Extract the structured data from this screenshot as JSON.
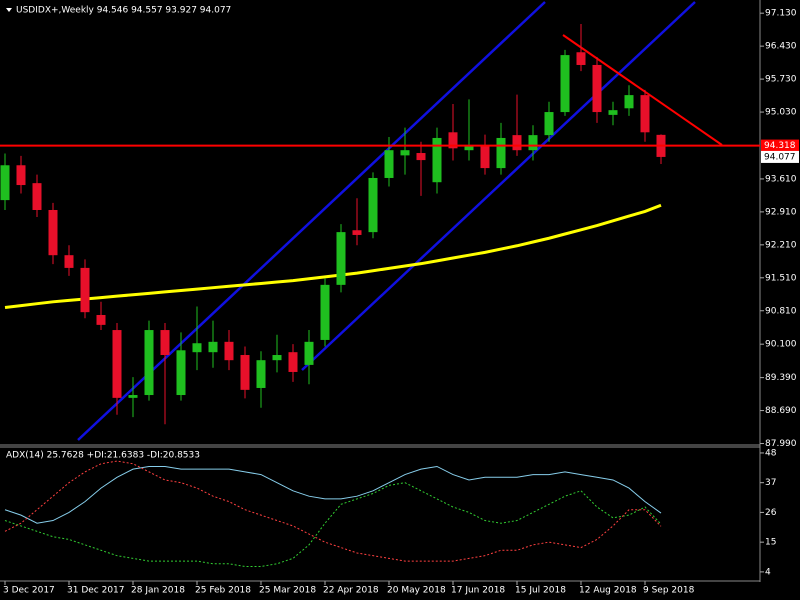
{
  "chart_data": [
    {
      "type": "candlestick",
      "title": "USDIDX+,Weekly  94.546 94.557 93.927 94.077",
      "categories": [
        "3 Dec 2017",
        null,
        null,
        null,
        "31 Dec 2017",
        null,
        null,
        null,
        "28 Jan 2018",
        null,
        null,
        null,
        "25 Feb 2018",
        null,
        null,
        null,
        "25 Mar 2018",
        null,
        null,
        null,
        "22 Apr 2018",
        null,
        null,
        null,
        "20 May 2018",
        null,
        null,
        null,
        "17 Jun 2018",
        null,
        null,
        null,
        "15 Jul 2018",
        null,
        null,
        null,
        "12 Aug 2018",
        null,
        null,
        null,
        "9 Sep 2018",
        null
      ],
      "open": [
        93.16,
        93.9,
        93.52,
        92.95,
        91.99,
        91.72,
        90.72,
        90.4,
        88.96,
        89.02,
        90.4,
        89.02,
        89.93,
        89.93,
        90.15,
        89.87,
        89.17,
        89.76,
        89.93,
        89.66,
        90.19,
        91.36,
        92.52,
        92.48,
        93.63,
        94.11,
        94.16,
        93.54,
        94.6,
        94.22,
        94.33,
        93.84,
        94.54,
        94.22,
        94.54,
        95.03,
        96.3,
        96.03,
        94.97,
        95.11,
        95.39,
        94.546
      ],
      "high": [
        94.15,
        94.1,
        93.7,
        93.1,
        92.2,
        91.9,
        91.0,
        90.55,
        89.4,
        90.6,
        90.55,
        90.35,
        90.9,
        90.6,
        90.4,
        90.05,
        89.95,
        90.3,
        90.1,
        90.4,
        91.5,
        92.65,
        93.2,
        93.75,
        94.5,
        94.7,
        94.4,
        94.7,
        95.2,
        95.3,
        94.55,
        94.8,
        95.4,
        94.75,
        95.25,
        96.35,
        96.9,
        96.2,
        95.25,
        95.6,
        95.5,
        94.557
      ],
      "low": [
        92.95,
        93.3,
        92.8,
        91.8,
        91.55,
        90.65,
        90.4,
        88.6,
        88.55,
        88.9,
        88.4,
        88.9,
        89.55,
        89.6,
        89.55,
        88.95,
        88.75,
        89.5,
        89.3,
        89.25,
        90.05,
        91.2,
        92.2,
        92.35,
        93.45,
        93.7,
        93.25,
        93.3,
        94.0,
        94.0,
        93.7,
        93.7,
        94.1,
        94.0,
        94.4,
        94.95,
        95.9,
        94.8,
        94.75,
        94.95,
        94.4,
        93.927
      ],
      "close": [
        93.9,
        93.48,
        92.95,
        91.99,
        91.72,
        90.78,
        90.51,
        88.96,
        89.02,
        90.4,
        89.87,
        89.97,
        90.12,
        90.15,
        89.76,
        89.13,
        89.76,
        89.87,
        89.51,
        90.15,
        91.36,
        92.48,
        92.42,
        93.63,
        94.22,
        94.22,
        94.01,
        94.48,
        94.26,
        94.33,
        93.84,
        94.48,
        94.22,
        94.54,
        95.03,
        96.24,
        96.03,
        95.03,
        95.07,
        95.39,
        94.6,
        94.077
      ],
      "up_color": "#1fbf1f",
      "down_color": "#e8102a",
      "ma": {
        "color": "#ffff00",
        "values": [
          90.88,
          90.92,
          90.96,
          91.0,
          91.03,
          91.06,
          91.09,
          91.12,
          91.15,
          91.18,
          91.21,
          91.24,
          91.27,
          91.3,
          91.33,
          91.36,
          91.39,
          91.42,
          91.45,
          91.49,
          91.53,
          91.57,
          91.61,
          91.66,
          91.71,
          91.76,
          91.81,
          91.87,
          91.93,
          91.99,
          92.05,
          92.12,
          92.19,
          92.27,
          92.35,
          92.44,
          92.53,
          92.62,
          92.72,
          92.82,
          92.92,
          93.05
        ]
      },
      "level": 94.318,
      "level_color": "#ff0000",
      "ylim": [
        87.98,
        97.41
      ],
      "yticks": [
        {
          "value": 97.13,
          "label": "97.130"
        },
        {
          "value": 96.43,
          "label": "96.430"
        },
        {
          "value": 95.73,
          "label": "95.730"
        },
        {
          "value": 95.03,
          "label": "95.030"
        },
        {
          "value": 93.61,
          "label": "93.610"
        },
        {
          "value": 92.91,
          "label": "92.910"
        },
        {
          "value": 92.21,
          "label": "92.210"
        },
        {
          "value": 91.51,
          "label": "91.510"
        },
        {
          "value": 90.81,
          "label": "90.810"
        },
        {
          "value": 90.1,
          "label": "90.100"
        },
        {
          "value": 89.39,
          "label": "89.390"
        },
        {
          "value": 88.69,
          "label": "88.690"
        },
        {
          "value": 87.99,
          "label": "87.990"
        }
      ]
    },
    {
      "type": "line",
      "title": "ADX(14) 25.7628 +DI:21.6383 -DI:20.8533",
      "series": [
        {
          "name": "ADX",
          "color": "#87ceeb",
          "dash": false,
          "values": [
            27,
            25,
            22,
            23,
            26,
            30,
            35,
            39,
            42,
            43,
            43,
            42,
            42,
            42,
            42,
            41,
            40,
            37,
            34,
            32,
            31,
            31,
            32,
            34,
            37,
            40,
            42,
            43,
            40,
            38,
            39,
            39,
            39,
            40,
            40,
            41,
            40,
            39,
            38,
            35,
            30,
            25.7628
          ]
        },
        {
          "name": "+DI",
          "color": "#32cd32",
          "dash": true,
          "values": [
            23,
            21,
            19,
            17,
            16,
            14,
            12,
            10,
            9,
            8,
            8,
            8,
            8,
            7,
            7,
            6,
            6,
            7,
            9,
            14,
            22,
            29,
            31,
            33,
            36,
            37,
            34,
            31,
            28,
            26,
            23,
            22,
            23,
            26,
            29,
            32,
            34,
            28,
            24,
            25,
            28,
            21.6383
          ]
        },
        {
          "name": "-DI",
          "color": "#ff4040",
          "dash": true,
          "values": [
            19,
            22,
            27,
            32,
            37,
            41,
            44,
            45,
            44,
            41,
            38,
            37,
            35,
            32,
            30,
            27,
            25,
            23,
            21,
            18,
            15,
            13,
            11,
            10,
            9,
            8,
            8,
            8,
            8,
            9,
            10,
            12,
            12,
            14,
            15,
            14,
            13,
            16,
            21,
            27,
            27,
            20.8533
          ]
        }
      ],
      "ylim": [
        1,
        50.2
      ],
      "yticks": [
        48,
        37,
        26,
        15,
        4
      ]
    }
  ]
}
